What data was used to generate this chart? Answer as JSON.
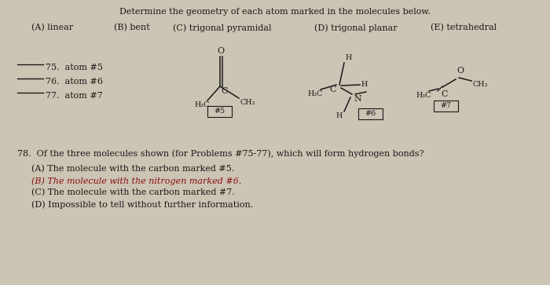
{
  "bg_color": "#ccc4b4",
  "title": "Determine the geometry of each atom marked in the molecules below.",
  "ac1": "(A) linear",
  "ac2": "(B) bent",
  "ac3": "(C) trigonal pyramidal",
  "ac4": "(D) trigonal planar",
  "ac5": "(E) tetrahedral",
  "q75": "75.  atom #5",
  "q76": "76.  atom #6",
  "q77": "77.  atom #7",
  "q78": "78.  Of the three molecules shown (for Problems #75-77), which will form hydrogen bonds?",
  "ans_A": "(A) The molecule with the carbon marked #5.",
  "ans_B": "(B) The molecule with the nitrogen marked #6.",
  "ans_C": "(C) The molecule with the carbon marked #7.",
  "ans_D": "(D) Impossible to tell without further information.",
  "ans_B_color": "#8b1010",
  "text_color": "#1a1a1a",
  "font_size": 8.0,
  "font_size_small": 6.8
}
